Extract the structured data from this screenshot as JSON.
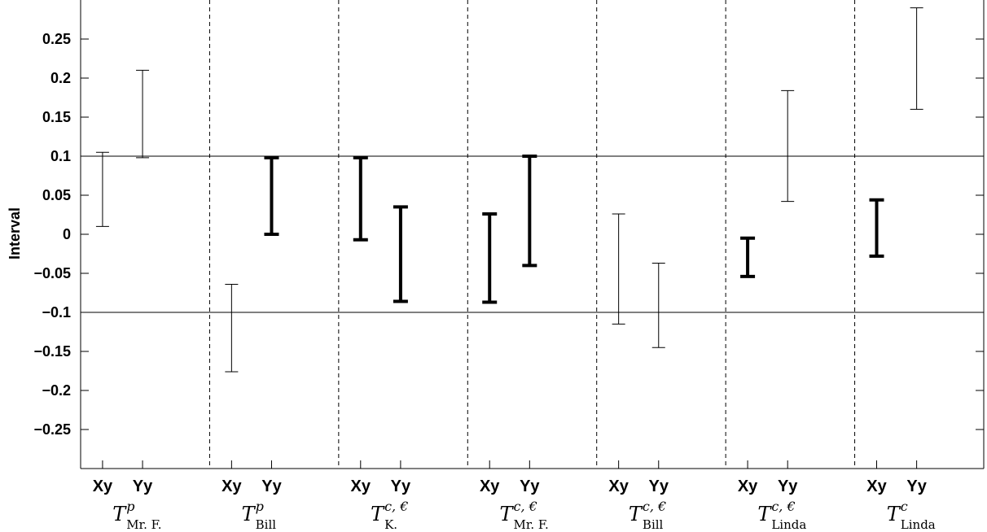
{
  "chart_data": {
    "type": "errorbar",
    "title": "",
    "ylabel": "Interval",
    "ylim": [
      -0.3,
      0.3
    ],
    "yticks": [
      -0.25,
      -0.2,
      -0.15,
      -0.1,
      -0.05,
      0,
      0.05,
      0.1,
      0.15,
      0.2,
      0.25
    ],
    "ytick_labels": [
      "−0.25",
      "−0.2",
      "−0.15",
      "−0.1",
      "−0.05",
      "0",
      "0.05",
      "0.1",
      "0.15",
      "0.2",
      "0.25"
    ],
    "reference_lines": [
      0.1,
      -0.1
    ],
    "grid": false,
    "groups": [
      {
        "main": "T",
        "sup": "p",
        "sub": "Mr. F.",
        "bars": [
          {
            "label": "Xy",
            "low": 0.01,
            "high": 0.105,
            "bold": false
          },
          {
            "label": "Yy",
            "low": 0.098,
            "high": 0.21,
            "bold": false
          }
        ]
      },
      {
        "main": "T",
        "sup": "p",
        "sub": "Bill",
        "bars": [
          {
            "label": "Xy",
            "low": -0.176,
            "high": -0.064,
            "bold": false
          },
          {
            "label": "Yy",
            "low": 0.0,
            "high": 0.098,
            "bold": true
          }
        ]
      },
      {
        "main": "T",
        "sup": "c, €",
        "sub": "K.",
        "bars": [
          {
            "label": "Xy",
            "low": -0.007,
            "high": 0.098,
            "bold": true
          },
          {
            "label": "Yy",
            "low": -0.086,
            "high": 0.035,
            "bold": true
          }
        ]
      },
      {
        "main": "T",
        "sup": "c, €",
        "sub": "Mr. F.",
        "bars": [
          {
            "label": "Xy",
            "low": -0.087,
            "high": 0.026,
            "bold": true
          },
          {
            "label": "Yy",
            "low": -0.04,
            "high": 0.1,
            "bold": true
          }
        ]
      },
      {
        "main": "T",
        "sup": "c, €",
        "sub": "Bill",
        "bars": [
          {
            "label": "Xy",
            "low": -0.115,
            "high": 0.026,
            "bold": false
          },
          {
            "label": "Yy",
            "low": -0.145,
            "high": -0.037,
            "bold": false
          }
        ]
      },
      {
        "main": "T",
        "sup": "c, €",
        "sub": "Linda",
        "bars": [
          {
            "label": "Xy",
            "low": -0.054,
            "high": -0.005,
            "bold": true
          },
          {
            "label": "Yy",
            "low": 0.042,
            "high": 0.184,
            "bold": false
          }
        ]
      },
      {
        "main": "T",
        "sup": "c",
        "sub": "Linda",
        "bars": [
          {
            "label": "Xy",
            "low": -0.028,
            "high": 0.044,
            "bold": true
          },
          {
            "label": "Yy",
            "low": 0.16,
            "high": 0.29,
            "bold": false
          }
        ]
      }
    ]
  }
}
